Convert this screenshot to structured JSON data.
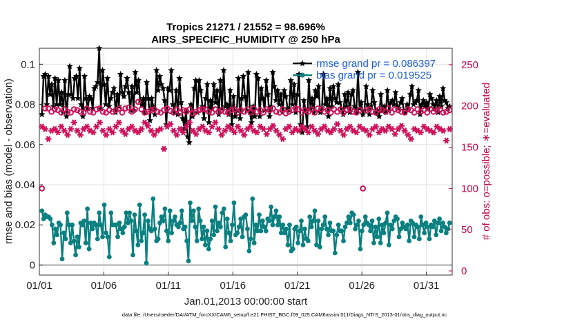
{
  "chart_data": {
    "type": "line",
    "title": "Tropics 21271 / 21552 = 98.696%",
    "subtitle": "AIRS_SPECIFIC_HUMIDITY @ 250 hPa",
    "xlabel": "Jan.01,2013 00:00:00 start",
    "ylabel": "rmse and bias (model - observation)",
    "ylabel_right": "# of obs: o=possible; ∗=evaluated",
    "footnote": "data file: /Users/raeder/DAI/ATM_forcXX/CAM6_setup/f.e21.FHIST_BGC.f09_025.CAM6assim.011/Diags_NTrS_2013-01/obs_diag_output.nc",
    "xlim": [
      0,
      32
    ],
    "ylim": [
      -0.005,
      0.108
    ],
    "ylim_right": [
      -5,
      270
    ],
    "x_ticks": [
      0,
      5,
      10,
      15,
      20,
      25,
      30
    ],
    "x_tick_labels": [
      "01/01",
      "01/06",
      "01/11",
      "01/16",
      "01/21",
      "01/26",
      "01/31"
    ],
    "y_ticks": [
      0,
      0.02,
      0.04,
      0.06,
      0.08,
      0.1
    ],
    "y_tick_labels": [
      "0",
      "0.02",
      "0.04",
      "0.06",
      "0.08",
      "0.1"
    ],
    "y_ticks_right": [
      0,
      50,
      100,
      150,
      200,
      250
    ],
    "y_tick_labels_right": [
      "0",
      "50",
      "100",
      "150",
      "200",
      "250"
    ],
    "grid": true,
    "legend_position": "top-right",
    "series": [
      {
        "name": "rmse grand pr = 0.086397",
        "color": "#000000",
        "marker": "star",
        "values": [
          0.075,
          0.094,
          0.095,
          0.08,
          0.094,
          0.085,
          0.09,
          0.079,
          0.093,
          0.08,
          0.092,
          0.08,
          0.086,
          0.076,
          0.092,
          0.074,
          0.085,
          0.099,
          0.085,
          0.083,
          0.093,
          0.094,
          0.083,
          0.098,
          0.08,
          0.074,
          0.094,
          0.083,
          0.078,
          0.084,
          0.083,
          0.078,
          0.088,
          0.089,
          0.091,
          0.108,
          0.078,
          0.097,
          0.09,
          0.08,
          0.093,
          0.079,
          0.083,
          0.086,
          0.088,
          0.076,
          0.085,
          0.079,
          0.095,
          0.086,
          0.084,
          0.089,
          0.093,
          0.086,
          0.077,
          0.089,
          0.077,
          0.096,
          0.086,
          0.092,
          0.082,
          0.08,
          0.083,
          0.076,
          0.091,
          0.083,
          0.072,
          0.083,
          0.079,
          0.075,
          0.097,
          0.087,
          0.094,
          0.09,
          0.088,
          0.082,
          0.07,
          0.088,
          0.087,
          0.097,
          0.08,
          0.076,
          0.087,
          0.075,
          0.093,
          0.081,
          0.073,
          0.068,
          0.077,
          0.064,
          0.061,
          0.08,
          0.074,
          0.088,
          0.092,
          0.076,
          0.092,
          0.087,
          0.079,
          0.073,
          0.083,
          0.09,
          0.071,
          0.082,
          0.078,
          0.09,
          0.081,
          0.087,
          0.075,
          0.092,
          0.078,
          0.097,
          0.079,
          0.08,
          0.075,
          0.087,
          0.07,
          0.084,
          0.074,
          0.077,
          0.093,
          0.073,
          0.083,
          0.094,
          0.084,
          0.077,
          0.096,
          0.076,
          0.071,
          0.079,
          0.074,
          0.095,
          0.093,
          0.074,
          0.088,
          0.083,
          0.077,
          0.092,
          0.085,
          0.074,
          0.079,
          0.096,
          0.089,
          0.082,
          0.087,
          0.08,
          0.085,
          0.076,
          0.087,
          0.084,
          0.078,
          0.077,
          0.092,
          0.08,
          0.09,
          0.076,
          0.085,
          0.095,
          0.07,
          0.066,
          0.082,
          0.077,
          0.069,
          0.092,
          0.078,
          0.083,
          0.076,
          0.087,
          0.084,
          0.089,
          0.076,
          0.078,
          0.095,
          0.08,
          0.083,
          0.074,
          0.088,
          0.079,
          0.089,
          0.083,
          0.081,
          0.09,
          0.081,
          0.078,
          0.075,
          0.085,
          0.079,
          0.086,
          0.076,
          0.085,
          0.087,
          0.079,
          0.076,
          0.096,
          0.078,
          0.081,
          0.075,
          0.077,
          0.089,
          0.08,
          0.075,
          0.079,
          0.087,
          0.081,
          0.076,
          0.077,
          0.074,
          0.085,
          0.077,
          0.079,
          0.076,
          0.087,
          0.077,
          0.081,
          0.082,
          0.08,
          0.086,
          0.079,
          0.078,
          0.081,
          0.083,
          0.077,
          0.076,
          0.08,
          0.078,
          0.085,
          0.089,
          0.08,
          0.081,
          0.082,
          0.087,
          0.075,
          0.08,
          0.082,
          0.079,
          0.081,
          0.078,
          0.085,
          0.083,
          0.08,
          0.078,
          0.082,
          0.076,
          0.084,
          0.079,
          0.088,
          0.082,
          0.081,
          0.078,
          0.079
        ]
      },
      {
        "name": "bias grand pr = 0.019525",
        "color": "#0a8080",
        "marker": "dot",
        "values": [
          0.027,
          0.023,
          0.025,
          0.024,
          0.024,
          0.023,
          0.02,
          0.011,
          0.018,
          0.015,
          0.021,
          0.02,
          0.003,
          0.016,
          0.013,
          0.026,
          0.02,
          0.011,
          0.02,
          0.012,
          0.005,
          0.014,
          0.009,
          0.021,
          0.02,
          0.022,
          0.011,
          0.028,
          0.008,
          0.021,
          0.018,
          0.021,
          0.02,
          0.013,
          0.026,
          0.02,
          0.014,
          0.03,
          0.016,
          0.014,
          0.004,
          0.026,
          0.02,
          0.02,
          0.02,
          0.014,
          0.021,
          0.018,
          0.016,
          0.019,
          0.026,
          0.021,
          0.026,
          0.022,
          0.005,
          0.025,
          0.017,
          0.01,
          0.03,
          0.012,
          0.016,
          0.025,
          0.001,
          0.022,
          0.018,
          0.017,
          0.033,
          0.018,
          0.012,
          0.013,
          0.021,
          0.024,
          0.022,
          0.028,
          0.017,
          0.012,
          0.027,
          0.016,
          0.022,
          0.024,
          0.02,
          0.019,
          0.021,
          0.027,
          0.018,
          0.019,
          0.012,
          0.002,
          0.031,
          0.022,
          0.027,
          0.019,
          0.012,
          0.028,
          0.022,
          0.013,
          0.019,
          0.01,
          0.017,
          0.008,
          0.013,
          0.022,
          0.015,
          0.029,
          0.017,
          0.021,
          0.019,
          0.026,
          0.028,
          0.009,
          0.023,
          0.016,
          0.012,
          0.02,
          0.031,
          0.015,
          0.016,
          0.019,
          0.023,
          0.014,
          0.024,
          0.025,
          0.018,
          0.007,
          0.013,
          0.033,
          0.011,
          0.02,
          0.017,
          0.025,
          0.017,
          0.022,
          0.019,
          0.017,
          0.023,
          0.022,
          0.029,
          0.02,
          0.024,
          0.027,
          0.02,
          0.024,
          0.016,
          0.02,
          0.016,
          0.018,
          0.01,
          0.02,
          0.007,
          0.008,
          0.018,
          0.019,
          0.011,
          0.017,
          0.022,
          0.01,
          0.018,
          0.013,
          0.012,
          0.024,
          0.019,
          0.022,
          0.027,
          0.01,
          0.022,
          0.009,
          0.018,
          0.02,
          0.024,
          0.018,
          0.015,
          0.021,
          0.017,
          0.017,
          0.006,
          0.015,
          0.02,
          0.017,
          0.017,
          0.012,
          0.019,
          0.021,
          0.024,
          0.021,
          0.026,
          0.025,
          0.018,
          0.02,
          0.022,
          0.008,
          0.017,
          0.02,
          0.024,
          0.021,
          0.02,
          0.017,
          0.022,
          0.011,
          0.019,
          0.014,
          0.023,
          0.011,
          0.02,
          0.016,
          0.021,
          0.026,
          0.01,
          0.02,
          0.018,
          0.022,
          0.024,
          0.023,
          0.014,
          0.018,
          0.021,
          0.019,
          0.018,
          0.02,
          0.012,
          0.022,
          0.021,
          0.014,
          0.02,
          0.019,
          0.013,
          0.024,
          0.02,
          0.016,
          0.021,
          0.019,
          0.013,
          0.02,
          0.019,
          0.022,
          0.015,
          0.021,
          0.023,
          0.017,
          0.021,
          0.019,
          0.016,
          0.018,
          0.021
        ]
      },
      {
        "name": "obs possible",
        "color": "#d0105a",
        "marker": "circle",
        "axis": "right",
        "values": [
          100,
          197,
          197,
          193,
          196,
          195,
          192,
          196,
          193,
          192,
          196,
          195,
          193,
          192,
          197,
          193,
          192,
          196,
          197,
          193,
          192,
          195,
          193,
          195,
          197,
          192,
          197,
          198,
          193,
          196,
          205,
          196,
          192,
          193,
          195,
          196,
          193,
          192,
          195,
          197,
          194,
          192,
          196,
          192,
          195,
          193,
          196,
          191,
          193,
          195,
          196,
          196,
          193,
          192,
          196,
          193,
          195,
          193,
          192,
          195,
          196,
          192,
          195,
          193,
          196,
          192,
          197,
          193,
          195,
          192,
          196,
          195,
          197,
          193,
          192,
          196,
          191,
          193,
          195,
          197,
          196,
          192,
          195,
          193,
          196,
          192,
          197,
          196,
          193,
          195,
          192,
          196,
          193,
          196,
          192,
          195,
          196,
          193,
          192,
          195,
          100,
          195,
          196,
          193,
          192,
          196,
          195,
          193,
          197,
          192,
          196,
          195,
          193,
          192,
          196,
          195,
          192,
          196,
          193,
          195,
          192,
          196,
          193,
          195,
          196,
          192,
          193,
          195
        ]
      },
      {
        "name": "obs evaluated",
        "color": "#d0105a",
        "marker": "asterisk",
        "axis": "right",
        "values": [
          175,
          172,
          160,
          170,
          172,
          168,
          175,
          170,
          165,
          172,
          180,
          170,
          165,
          172,
          175,
          170,
          168,
          175,
          180,
          170,
          165,
          172,
          168,
          175,
          180,
          170,
          166,
          172,
          175,
          170,
          168,
          172,
          180,
          176,
          170,
          165,
          170,
          172,
          148,
          175,
          178,
          170,
          165,
          172,
          168,
          175,
          180,
          170,
          166,
          172,
          175,
          170,
          168,
          175,
          180,
          172,
          165,
          170,
          175,
          172,
          168,
          175,
          170,
          165,
          172,
          175,
          170,
          168,
          175,
          172,
          166,
          172,
          176,
          170,
          165,
          160,
          172,
          175,
          168,
          172,
          170,
          175,
          172,
          168,
          175,
          170,
          166,
          172,
          175,
          170,
          168,
          172,
          178,
          170,
          165,
          172,
          175,
          170,
          168,
          175,
          172,
          170,
          165,
          172,
          175,
          168,
          172,
          170,
          175,
          172,
          166,
          172,
          176,
          170,
          165,
          160,
          172,
          170,
          168,
          175,
          172,
          170,
          168,
          175,
          172,
          170,
          158,
          172
        ]
      }
    ]
  }
}
